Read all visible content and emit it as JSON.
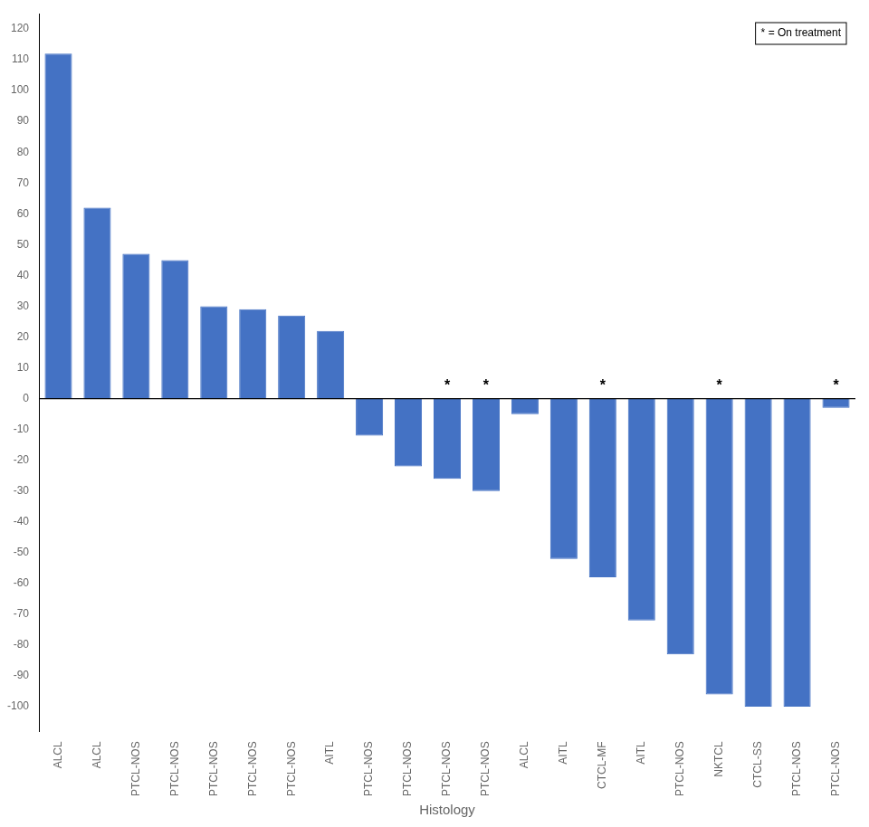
{
  "chart_data": {
    "type": "bar",
    "categories": [
      "ALCL",
      "ALCL",
      "PTCL-NOS",
      "PTCL-NOS",
      "PTCL-NOS",
      "PTCL-NOS",
      "PTCL-NOS",
      "AITL",
      "PTCL-NOS",
      "PTCL-NOS",
      "PTCL-NOS",
      "PTCL-NOS",
      "ALCL",
      "AITL",
      "CTCL-MF",
      "AITL",
      "PTCL-NOS",
      "NKTCL",
      "CTCL-SS",
      "PTCL-NOS",
      "PTCL-NOS"
    ],
    "values": [
      112,
      62,
      47,
      45,
      30,
      29,
      27,
      22,
      -12,
      -22,
      -26,
      -30,
      -5,
      -52,
      -58,
      -72,
      -83,
      -96,
      -100,
      -100,
      -3
    ],
    "color": "#4472C4",
    "xlabel": "Histology",
    "ylim": [
      -108,
      125
    ],
    "yticks": [
      -100,
      -90,
      -80,
      -70,
      -60,
      -50,
      -40,
      -30,
      -20,
      -10,
      0,
      10,
      20,
      30,
      40,
      50,
      60,
      70,
      80,
      90,
      100,
      110,
      120
    ],
    "grid": false,
    "annotations": [
      {
        "index": 10,
        "y": 3,
        "text": "*"
      },
      {
        "index": 11,
        "y": 3,
        "text": "*"
      },
      {
        "index": 14,
        "y": 3,
        "text": "*"
      },
      {
        "index": 17,
        "y": 3,
        "text": "*"
      },
      {
        "index": 20,
        "y": 3,
        "text": "*"
      },
      {
        "text": "* = On treatment"
      }
    ]
  }
}
